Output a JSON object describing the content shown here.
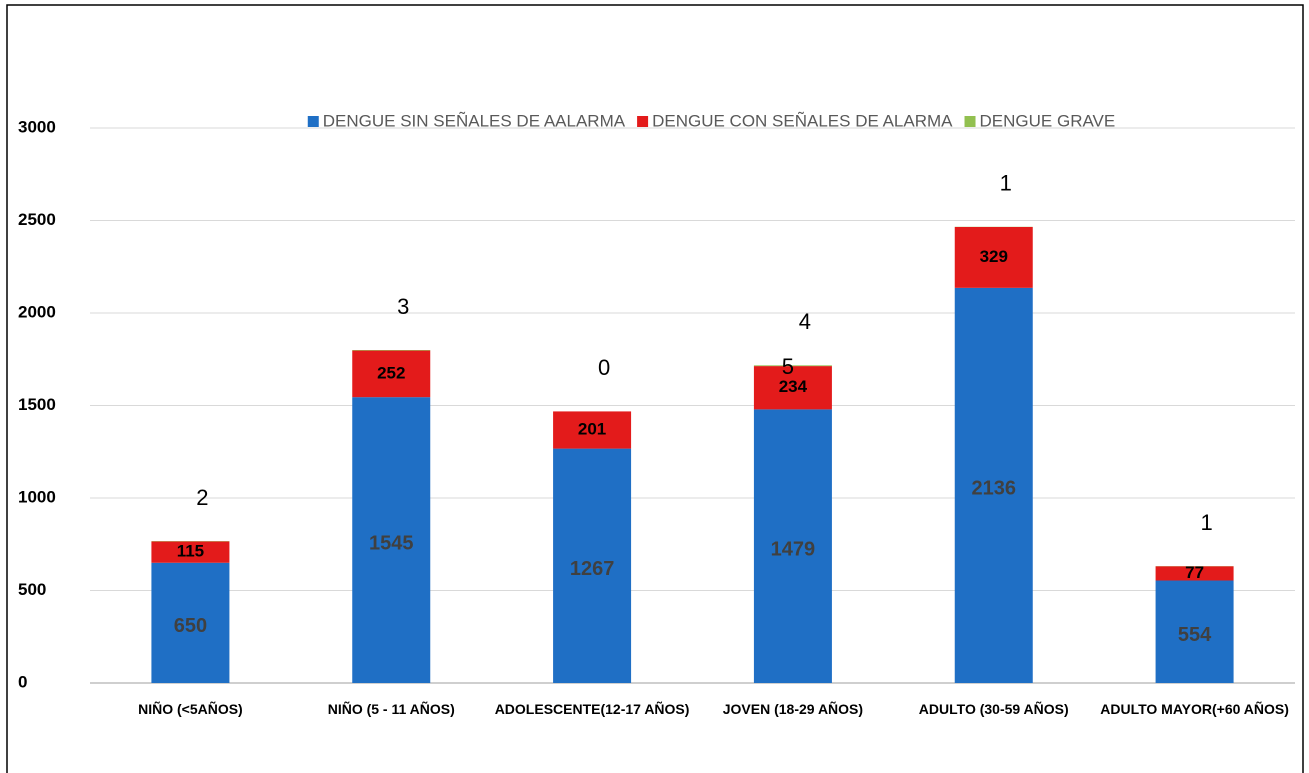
{
  "chart_data": {
    "type": "bar",
    "stacked": true,
    "categories": [
      "NIÑO (<5AÑOS)",
      "NIÑO (5 - 11 AÑOS)",
      "ADOLESCENTE(12-17 AÑOS)",
      "JOVEN (18-29 AÑOS)",
      "ADULTO (30-59 AÑOS)",
      "ADULTO MAYOR(+60 AÑOS)"
    ],
    "series": [
      {
        "name": "DENGUE SIN SEÑALES DE AALARMA",
        "color": "#1f6fc5",
        "values": [
          650,
          1545,
          1267,
          1479,
          2136,
          554
        ]
      },
      {
        "name": "DENGUE CON SEÑALES DE ALARMA",
        "color": "#e31b1b",
        "values": [
          115,
          252,
          201,
          234,
          329,
          77
        ]
      },
      {
        "name": "DENGUE GRAVE",
        "color": "#92c050",
        "values": [
          2,
          3,
          0,
          4,
          1,
          1
        ]
      }
    ],
    "annotations": [
      "5"
    ],
    "ylim": [
      0,
      3000
    ],
    "yticks": [
      0,
      500,
      1000,
      1500,
      2000,
      2500,
      3000
    ],
    "grid": true,
    "legend": "top"
  }
}
